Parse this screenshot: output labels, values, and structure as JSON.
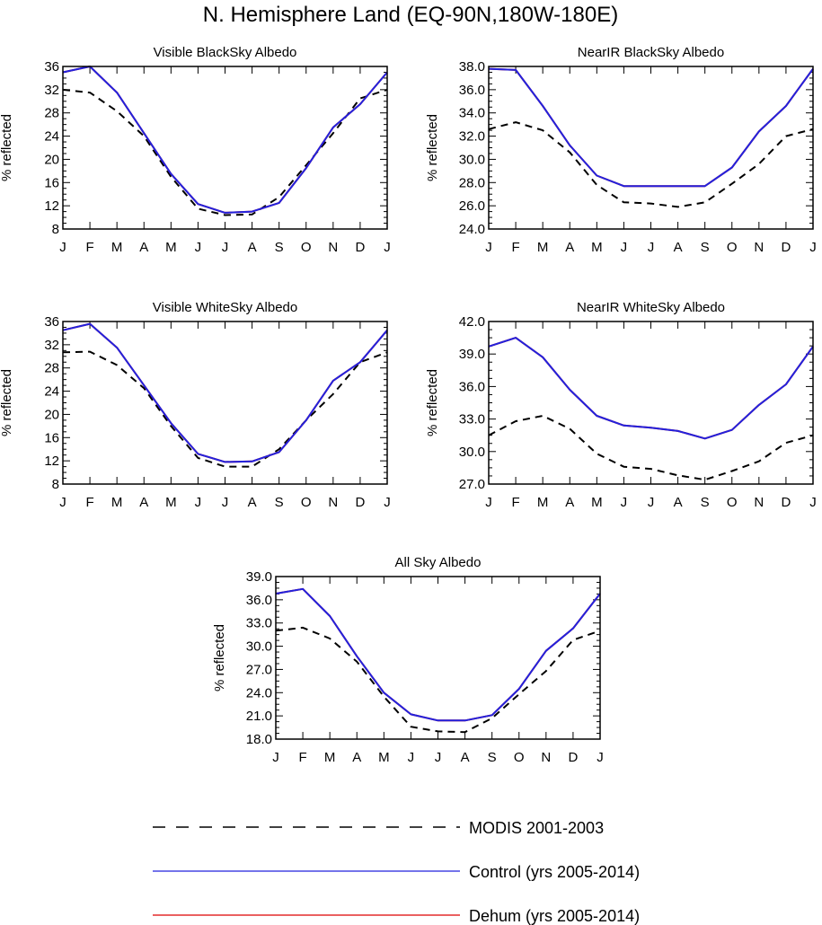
{
  "figure_title": "N. Hemisphere Land (EQ-90N,180W-180E)",
  "months": [
    "J",
    "F",
    "M",
    "A",
    "M",
    "J",
    "J",
    "A",
    "S",
    "O",
    "N",
    "D",
    "J"
  ],
  "legend": [
    {
      "label": "MODIS 2001-2003",
      "color": "#000000",
      "style": "dashed"
    },
    {
      "label": "Control (yrs 2005-2014)",
      "color": "#2222dd",
      "style": "solid"
    },
    {
      "label": "Dehum (yrs 2005-2014)",
      "color": "#dd0000",
      "style": "solid"
    }
  ],
  "chart_data": [
    {
      "type": "line",
      "title": "Visible BlackSky Albedo",
      "ylabel": "% reflected",
      "xlabel": "",
      "ylim": [
        8,
        36
      ],
      "yticks": [
        "8",
        "12",
        "16",
        "20",
        "24",
        "28",
        "32",
        "36"
      ],
      "categories": [
        "J",
        "F",
        "M",
        "A",
        "M",
        "J",
        "J",
        "A",
        "S",
        "O",
        "N",
        "D",
        "J"
      ],
      "series": [
        {
          "name": "MODIS 2001-2003",
          "values": [
            32.0,
            31.5,
            28.3,
            24.0,
            17.0,
            11.5,
            10.4,
            10.5,
            13.5,
            19.0,
            24.5,
            30.5,
            32.0
          ]
        },
        {
          "name": "Control (yrs 2005-2014)",
          "values": [
            35.0,
            36.0,
            31.5,
            24.5,
            17.5,
            12.3,
            10.8,
            11.0,
            12.5,
            18.5,
            25.5,
            29.5,
            35.0
          ]
        },
        {
          "name": "Dehum (yrs 2005-2014)",
          "values": [
            35.0,
            36.0,
            31.5,
            24.5,
            17.5,
            12.3,
            10.8,
            11.0,
            12.5,
            18.5,
            25.5,
            29.5,
            35.0
          ]
        }
      ]
    },
    {
      "type": "line",
      "title": "NearIR BlackSky Albedo",
      "ylabel": "% reflected",
      "xlabel": "",
      "ylim": [
        24.0,
        38.0
      ],
      "yticks": [
        "24.0",
        "26.0",
        "28.0",
        "30.0",
        "32.0",
        "34.0",
        "36.0",
        "38.0"
      ],
      "categories": [
        "J",
        "F",
        "M",
        "A",
        "M",
        "J",
        "J",
        "A",
        "S",
        "O",
        "N",
        "D",
        "J"
      ],
      "series": [
        {
          "name": "MODIS 2001-2003",
          "values": [
            32.6,
            33.2,
            32.5,
            30.6,
            27.8,
            26.3,
            26.2,
            25.9,
            26.3,
            27.9,
            29.6,
            32.0,
            32.6
          ]
        },
        {
          "name": "Control (yrs 2005-2014)",
          "values": [
            37.8,
            37.7,
            34.6,
            31.2,
            28.6,
            27.7,
            27.7,
            27.7,
            27.7,
            29.3,
            32.4,
            34.6,
            37.8
          ]
        },
        {
          "name": "Dehum (yrs 2005-2014)",
          "values": [
            37.8,
            37.7,
            34.6,
            31.2,
            28.6,
            27.7,
            27.7,
            27.7,
            27.7,
            29.3,
            32.4,
            34.6,
            37.8
          ]
        }
      ]
    },
    {
      "type": "line",
      "title": "Visible WhiteSky Albedo",
      "ylabel": "% reflected",
      "xlabel": "",
      "ylim": [
        8,
        36
      ],
      "yticks": [
        "8",
        "12",
        "16",
        "20",
        "24",
        "28",
        "32",
        "36"
      ],
      "categories": [
        "J",
        "F",
        "M",
        "A",
        "M",
        "J",
        "J",
        "A",
        "S",
        "O",
        "N",
        "D",
        "J"
      ],
      "series": [
        {
          "name": "MODIS 2001-2003",
          "values": [
            30.7,
            30.8,
            28.5,
            24.5,
            18.0,
            12.5,
            11.0,
            11.0,
            14.0,
            19.0,
            23.5,
            29.0,
            30.7
          ]
        },
        {
          "name": "Control (yrs 2005-2014)",
          "values": [
            34.5,
            35.6,
            31.5,
            25.0,
            18.5,
            13.2,
            11.8,
            11.9,
            13.5,
            19.0,
            25.8,
            29.0,
            34.5
          ]
        },
        {
          "name": "Dehum (yrs 2005-2014)",
          "values": [
            34.5,
            35.6,
            31.5,
            25.0,
            18.5,
            13.2,
            11.8,
            11.9,
            13.5,
            19.0,
            25.8,
            29.0,
            34.5
          ]
        }
      ]
    },
    {
      "type": "line",
      "title": "NearIR WhiteSky Albedo",
      "ylabel": "% reflected",
      "xlabel": "",
      "ylim": [
        27.0,
        42.0
      ],
      "yticks": [
        "27.0",
        "30.0",
        "33.0",
        "36.0",
        "39.0",
        "42.0"
      ],
      "categories": [
        "J",
        "F",
        "M",
        "A",
        "M",
        "J",
        "J",
        "A",
        "S",
        "O",
        "N",
        "D",
        "J"
      ],
      "series": [
        {
          "name": "MODIS 2001-2003",
          "values": [
            31.5,
            32.8,
            33.3,
            32.1,
            29.8,
            28.6,
            28.4,
            27.8,
            27.4,
            28.2,
            29.1,
            30.8,
            31.5
          ]
        },
        {
          "name": "Control (yrs 2005-2014)",
          "values": [
            39.7,
            40.5,
            38.7,
            35.7,
            33.3,
            32.4,
            32.2,
            31.9,
            31.2,
            32.0,
            34.3,
            36.2,
            39.7
          ]
        },
        {
          "name": "Dehum (yrs 2005-2014)",
          "values": [
            39.7,
            40.5,
            38.7,
            35.7,
            33.3,
            32.4,
            32.2,
            31.9,
            31.2,
            32.0,
            34.3,
            36.2,
            39.7
          ]
        }
      ]
    },
    {
      "type": "line",
      "title": "All Sky Albedo",
      "ylabel": "% reflected",
      "xlabel": "",
      "ylim": [
        18.0,
        39.0
      ],
      "yticks": [
        "18.0",
        "21.0",
        "24.0",
        "27.0",
        "30.0",
        "33.0",
        "36.0",
        "39.0"
      ],
      "categories": [
        "J",
        "F",
        "M",
        "A",
        "M",
        "J",
        "J",
        "A",
        "S",
        "O",
        "N",
        "D",
        "J"
      ],
      "series": [
        {
          "name": "MODIS 2001-2003",
          "values": [
            32.0,
            32.4,
            31.0,
            28.0,
            23.5,
            19.6,
            19.0,
            18.9,
            20.7,
            23.8,
            26.8,
            30.8,
            32.0
          ]
        },
        {
          "name": "Control (yrs 2005-2014)",
          "values": [
            36.8,
            37.4,
            33.9,
            28.7,
            24.0,
            21.2,
            20.4,
            20.4,
            21.1,
            24.5,
            29.4,
            32.3,
            36.8
          ]
        },
        {
          "name": "Dehum (yrs 2005-2014)",
          "values": [
            36.8,
            37.4,
            33.9,
            28.7,
            24.0,
            21.2,
            20.4,
            20.4,
            21.1,
            24.5,
            29.4,
            32.3,
            36.8
          ]
        }
      ]
    }
  ]
}
